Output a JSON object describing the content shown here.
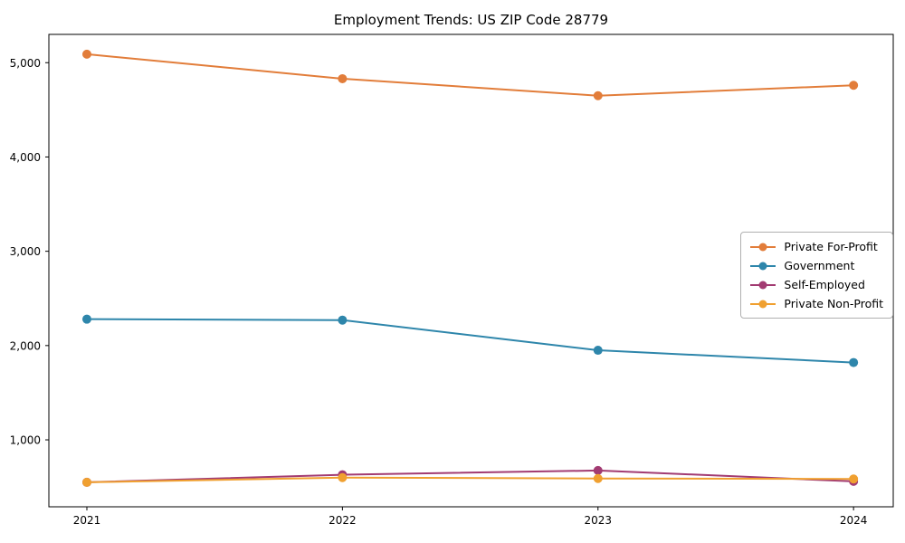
{
  "title": "Employment Trends: US ZIP Code 28779",
  "chart_data": {
    "type": "line",
    "title": "Employment Trends: US ZIP Code 28779",
    "xlabel": "",
    "ylabel": "",
    "categories": [
      "2021",
      "2022",
      "2023",
      "2024"
    ],
    "series": [
      {
        "name": "Private For-Profit",
        "color": "#e27d3a",
        "values": [
          5090,
          4830,
          4650,
          4760
        ]
      },
      {
        "name": "Government",
        "color": "#2e86ab",
        "values": [
          2280,
          2270,
          1950,
          1820
        ]
      },
      {
        "name": "Self-Employed",
        "color": "#a23b72",
        "values": [
          550,
          630,
          675,
          560
        ]
      },
      {
        "name": "Private Non-Profit",
        "color": "#f0a030",
        "values": [
          550,
          600,
          590,
          585
        ]
      }
    ],
    "ylim": [
      290,
      5300
    ],
    "yticks": [
      1000,
      2000,
      3000,
      4000,
      5000
    ],
    "ytick_labels": [
      "1,000",
      "2,000",
      "3,000",
      "4,000",
      "5,000"
    ],
    "grid": false,
    "marker": "circle",
    "legend_position": "center right",
    "axis_color": "#000000",
    "tick_label_color": "#000000"
  }
}
